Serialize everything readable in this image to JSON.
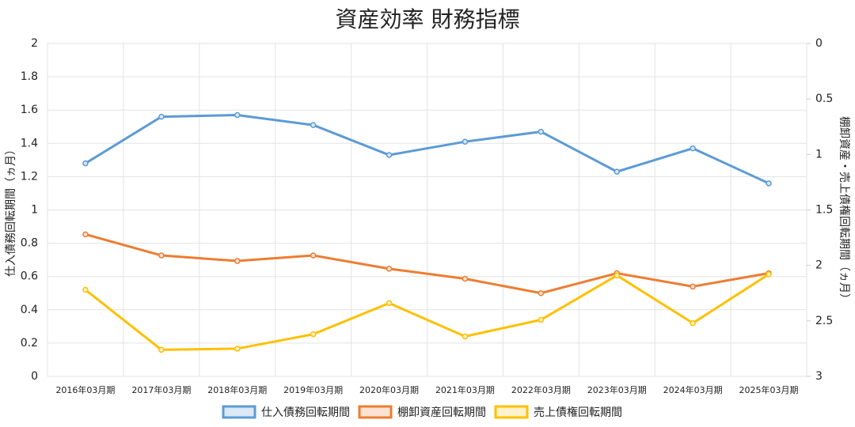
{
  "chart_data": {
    "type": "line",
    "title": "資産効率 財務指標",
    "y_label": "仕入債務回転期間（ヵ月）",
    "y2_label": "棚卸資産・売上債権回転期間（ヵ月）",
    "categories": [
      "2016年03月期",
      "2017年03月期",
      "2018年03月期",
      "2019年03月期",
      "2020年03月期",
      "2021年03月期",
      "2022年03月期",
      "2023年03月期",
      "2024年03月期",
      "2025年03月期"
    ],
    "series": [
      {
        "name": "仕入債務回転期間",
        "color": "#5b9bd5",
        "fill": "#dbe8f5",
        "values": [
          1.28,
          1.56,
          1.57,
          1.51,
          1.33,
          1.41,
          1.47,
          1.23,
          1.37,
          1.16
        ]
      },
      {
        "name": "棚卸資産回転期間",
        "color": "#ed7d31",
        "fill": "#fbe3d4",
        "axis": "y2",
        "values": [
          1.72,
          1.91,
          1.96,
          1.91,
          2.03,
          2.12,
          2.25,
          2.07,
          2.19,
          2.07
        ]
      },
      {
        "name": "売上債権回転期間",
        "color": "#ffc000",
        "fill": "#fff2cc",
        "axis": "y2",
        "values": [
          2.22,
          2.76,
          2.75,
          2.62,
          2.34,
          2.64,
          2.49,
          2.09,
          2.52,
          2.08
        ]
      }
    ],
    "ylim": [
      0,
      2
    ],
    "yticks": [
      0,
      0.2,
      0.4,
      0.6,
      0.8,
      1,
      1.2,
      1.4,
      1.6,
      1.8,
      2
    ],
    "y2lim": [
      0,
      3
    ],
    "y2ticks": [
      0,
      0.5,
      1,
      1.5,
      2,
      2.5,
      3
    ],
    "y2_reversed": true,
    "grid": true,
    "legend": "bottom"
  }
}
